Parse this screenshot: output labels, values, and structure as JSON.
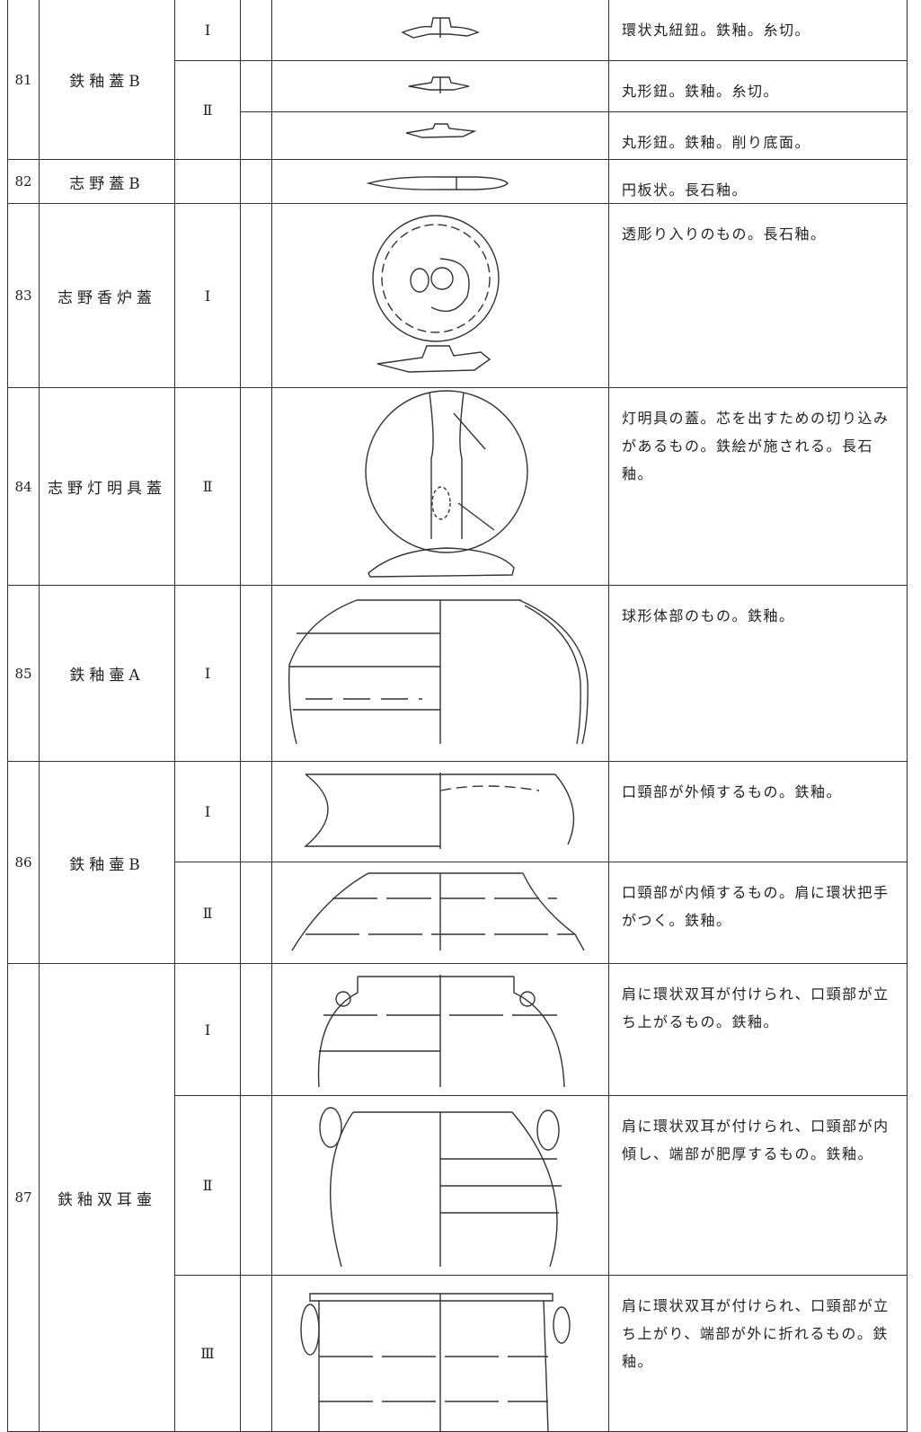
{
  "table": {
    "groups": [
      {
        "number": "81",
        "name": "鉄釉蓋B",
        "items": [
          {
            "type": "Ⅰ",
            "descriptions": [
              "環状丸紐鈕。鉄釉。糸切。"
            ]
          },
          {
            "type": "Ⅱ",
            "descriptions": [
              "丸形鈕。鉄釉。糸切。",
              "丸形鈕。鉄釉。削り底面。"
            ]
          }
        ]
      },
      {
        "number": "82",
        "name": "志野蓋B",
        "items": [
          {
            "descriptions": [
              "円板状。長石釉。"
            ]
          }
        ]
      },
      {
        "number": "83",
        "name": "志野香炉蓋",
        "items": [
          {
            "type": "Ⅰ",
            "descriptions": [
              "透彫り入りのもの。長石釉。"
            ]
          }
        ]
      },
      {
        "number": "84",
        "name": "志野灯明具蓋",
        "items": [
          {
            "type": "Ⅱ",
            "descriptions": [
              "灯明具の蓋。芯を出すための切り込みがあるもの。鉄絵が施される。長石釉。"
            ]
          }
        ]
      },
      {
        "number": "85",
        "name": "鉄釉壷A",
        "items": [
          {
            "type": "Ⅰ",
            "descriptions": [
              "球形体部のもの。鉄釉。"
            ]
          }
        ]
      },
      {
        "number": "86",
        "name": "鉄釉壷B",
        "items": [
          {
            "type": "Ⅰ",
            "descriptions": [
              "口頸部が外傾するもの。鉄釉。"
            ]
          },
          {
            "type": "Ⅱ",
            "descriptions": [
              "口頸部が内傾するもの。肩に環状把手がつく。鉄釉。"
            ]
          }
        ]
      },
      {
        "number": "87",
        "name": "鉄釉双耳壷",
        "items": [
          {
            "type": "Ⅰ",
            "descriptions": [
              "肩に環状双耳が付けられ、口頸部が立ち上がるもの。鉄釉。"
            ]
          },
          {
            "type": "Ⅱ",
            "descriptions": [
              "肩に環状双耳が付けられ、口頸部が内傾し、端部が肥厚するもの。鉄釉。"
            ]
          },
          {
            "type": "Ⅲ",
            "descriptions": [
              "肩に環状双耳が付けられ、口頸部が立ち上がり、端部が外に折れるもの。鉄釉。"
            ]
          }
        ]
      }
    ]
  }
}
